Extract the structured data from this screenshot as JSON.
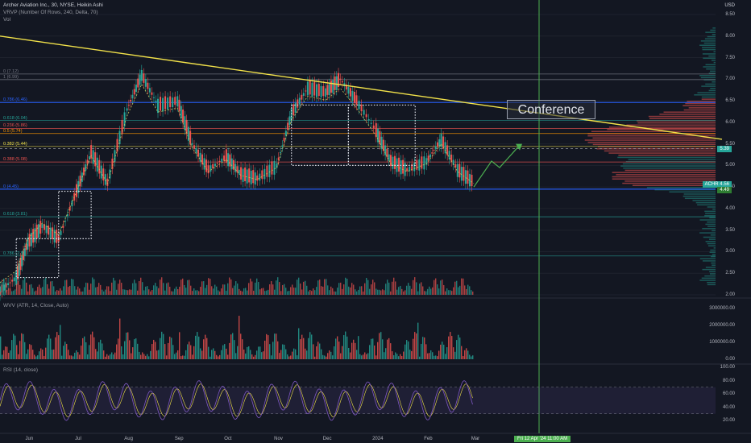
{
  "header": {
    "symbol_line": "Archer Aviation Inc., 30, NYSE, Heikin Ashi",
    "vrvp_line": "VRVP (Number Of Rows, 240, Delta, 70)",
    "vol_line": "Vol"
  },
  "currency": "USD",
  "annotation": "Conference",
  "symbol_tag": "ACHR",
  "current_price": "4.56",
  "target_price": "5.39",
  "second_price": "4.49",
  "crosshair_label": "Fri 12 Apr '24   11:00 AM",
  "colors": {
    "background": "#131722",
    "up": "#26a69a",
    "down": "#ef5350",
    "trendline": "#f2e24a",
    "rsi": "#7e57c2",
    "crosshair": "#4caf50"
  },
  "chart_data": [
    {
      "type": "line",
      "name": "price",
      "ylim": [
        2.0,
        8.5
      ],
      "y_ticks": [
        8.5,
        8.0,
        7.5,
        7.0,
        6.5,
        6.0,
        5.5,
        5.0,
        4.5,
        4.0,
        3.5,
        3.0,
        2.5,
        2.0
      ],
      "x_labels": [
        "Jun",
        "Jul",
        "Aug",
        "Sep",
        "Oct",
        "Nov",
        "Dec",
        "2024",
        "Feb",
        "Mar"
      ],
      "x": [
        "2023-05-15",
        "2023-05-25",
        "2023-06-01",
        "2023-06-10",
        "2023-06-20",
        "2023-07-01",
        "2023-07-10",
        "2023-07-20",
        "2023-08-01",
        "2023-08-10",
        "2023-08-20",
        "2023-09-01",
        "2023-09-10",
        "2023-09-20",
        "2023-10-01",
        "2023-10-10",
        "2023-10-20",
        "2023-11-01",
        "2023-11-10",
        "2023-11-20",
        "2023-12-01",
        "2023-12-10",
        "2023-12-20",
        "2024-01-01",
        "2024-01-10",
        "2024-01-20",
        "2024-02-01",
        "2024-02-10",
        "2024-02-20",
        "2024-03-01"
      ],
      "close": [
        2.1,
        2.4,
        3.2,
        3.6,
        3.3,
        4.4,
        5.3,
        4.6,
        6.3,
        7.1,
        6.4,
        6.5,
        5.5,
        4.9,
        5.2,
        4.8,
        4.7,
        5.0,
        6.2,
        6.8,
        6.7,
        7.0,
        6.5,
        5.8,
        5.1,
        4.9,
        5.1,
        5.6,
        4.9,
        4.6
      ],
      "trendline": {
        "start": [
          "2023-05-15",
          8.0
        ],
        "end": [
          "2024-05-01",
          6.1
        ]
      },
      "fib_levels": [
        {
          "label": "0 (7.12)",
          "value": 7.12
        },
        {
          "label": "1 (6.99)",
          "value": 6.99
        },
        {
          "label": "0.786 (6.46)",
          "value": 6.46
        },
        {
          "label": "0.618 (6.04)",
          "value": 6.04
        },
        {
          "label": "0.236 (5.86)",
          "value": 5.86
        },
        {
          "label": "0.5 (5.74)",
          "value": 5.74
        },
        {
          "label": "0.382 (5.44)",
          "value": 5.44
        },
        {
          "label": "0.388 (5.08)",
          "value": 5.08
        },
        {
          "label": "0 (4.45)",
          "value": 4.45
        },
        {
          "label": "0.618 (3.81)",
          "value": 3.81
        },
        {
          "label": "0.786 (2.9)",
          "value": 2.9
        }
      ]
    },
    {
      "type": "bar",
      "name": "WVV",
      "title": "WVV (ATR, 14, Close, Auto)",
      "ylim": [
        0,
        3000000
      ],
      "y_ticks": [
        "3000000.00",
        "2000000.00",
        "1000000.00",
        "0.00"
      ]
    },
    {
      "type": "line",
      "name": "RSI",
      "title": "RSI (14, close)",
      "ylim": [
        20,
        100
      ],
      "y_ticks": [
        "100.00",
        "80.00",
        "60.00",
        "40.00",
        "20.00"
      ],
      "band": [
        30,
        70
      ]
    }
  ]
}
